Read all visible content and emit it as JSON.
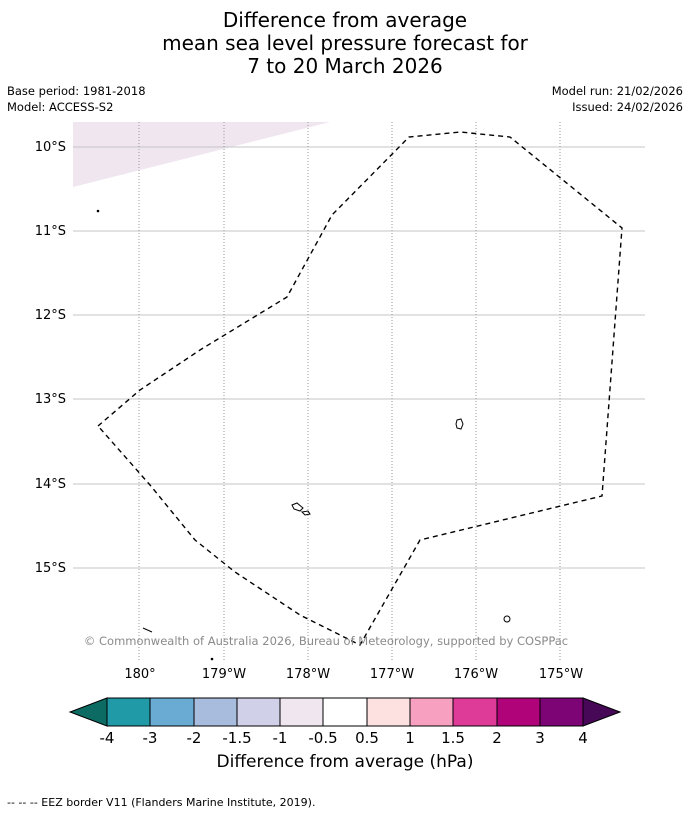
{
  "title": {
    "line1": "Difference from average",
    "line2": "mean sea level pressure forecast for",
    "line3": "7 to 20 March 2026"
  },
  "meta": {
    "base_period": "Base period: 1981-2018",
    "model": "Model: ACCESS-S2",
    "model_run": "Model run: 21/02/2026",
    "issued": "Issued: 24/02/2026"
  },
  "map": {
    "lat_labels": [
      "10°S",
      "11°S",
      "12°S",
      "13°S",
      "14°S",
      "15°S"
    ],
    "lon_labels": [
      "180°",
      "179°W",
      "178°W",
      "177°W",
      "176°W",
      "175°W"
    ],
    "copyright": "© Commonwealth of Australia 2026, Bureau of Meteorology, supported by COSPPac",
    "shaded_category": "-1 to -0.5"
  },
  "colorbar": {
    "title": "Difference from average (hPa)",
    "ticks": [
      "-4",
      "-3",
      "-2",
      "-1.5",
      "-1",
      "-0.5",
      "0.5",
      "1",
      "1.5",
      "2",
      "3",
      "4"
    ],
    "colors": [
      "#0c6b62",
      "#1f9aa6",
      "#6aabd3",
      "#a8bcdd",
      "#d0d1e8",
      "#f0e6f0",
      "#ffffff",
      "#fde0e0",
      "#f8a0bf",
      "#de3a97",
      "#b0037a",
      "#7c0475",
      "#470858"
    ]
  },
  "footnote": "--  --  -- EEZ border V11 (Flanders Marine Institute, 2019)."
}
